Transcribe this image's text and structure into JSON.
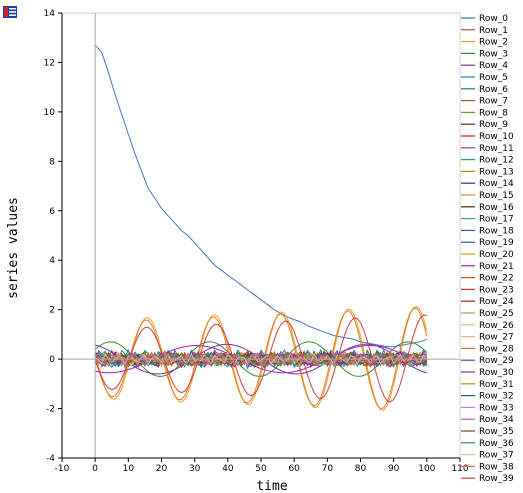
{
  "chart_data": {
    "type": "line",
    "title": "",
    "xlabel": "time",
    "ylabel": "series values",
    "xlim": [
      -10,
      110
    ],
    "ylim": [
      -4,
      14
    ],
    "x_ticks": [
      -10,
      0,
      10,
      20,
      30,
      40,
      50,
      60,
      70,
      80,
      90,
      100,
      110
    ],
    "y_ticks": [
      -4,
      -2,
      0,
      2,
      4,
      6,
      8,
      10,
      12,
      14
    ],
    "grid": true,
    "legend_position": "right",
    "series_colors": [
      "#4472c4",
      "#c0504d",
      "#e8a030",
      "#2f8f2f",
      "#7030a0",
      "#2c7fb8",
      "#1f7a8c",
      "#a05a2c",
      "#5aa02c",
      "#7a1f1f",
      "#c02020",
      "#8e44ad",
      "#16a085",
      "#b8860b",
      "#1f3a93",
      "#e67e22",
      "#4b2b1a",
      "#27ae60",
      "#2e5d9f",
      "#355e8a",
      "#d4a017",
      "#a020c0",
      "#d35400",
      "#c0392b",
      "#9b1d1d",
      "#7fbf3f",
      "#e0c070",
      "#f0b080",
      "#e07020",
      "#5b3f9f",
      "#7b3fa0",
      "#b09000",
      "#2050a0",
      "#c080d0",
      "#b060c0",
      "#7a4a1a",
      "#2e8b57",
      "#e8c090",
      "#e07070",
      "#d04040"
    ],
    "series": [
      {
        "name": "Row_0",
        "x": [
          0,
          2,
          4,
          6,
          8,
          10,
          12,
          14,
          16,
          18,
          20,
          22,
          24,
          26,
          28,
          30,
          32,
          34,
          36,
          38,
          40,
          42,
          44,
          46,
          48,
          50,
          52,
          54,
          56,
          58,
          60,
          62,
          64,
          66,
          68,
          70,
          72,
          74,
          76,
          78,
          80,
          82,
          84,
          86,
          88,
          90,
          92,
          94,
          96,
          98,
          100
        ],
        "y": [
          12.7,
          12.4,
          11.6,
          10.7,
          9.9,
          9.1,
          8.3,
          7.6,
          6.9,
          6.5,
          6.1,
          5.8,
          5.5,
          5.2,
          5.0,
          4.7,
          4.4,
          4.1,
          3.8,
          3.6,
          3.4,
          3.2,
          3.0,
          2.8,
          2.6,
          2.4,
          2.2,
          2.0,
          1.85,
          1.7,
          1.6,
          1.5,
          1.35,
          1.25,
          1.15,
          1.05,
          0.95,
          0.9,
          0.85,
          0.8,
          0.7,
          0.65,
          0.6,
          0.55,
          0.5,
          0.5,
          0.55,
          0.6,
          0.65,
          0.7,
          0.8
        ]
      },
      {
        "name": "Row_1",
        "amp": 0.25,
        "freq": 0.35,
        "phase": 0.4
      },
      {
        "name": "Row_2",
        "amp": 1.6,
        "freq": 0.31,
        "phase": 3.0,
        "mult": 1.35
      },
      {
        "name": "Row_3",
        "amp": 0.7,
        "freq": 0.21,
        "phase": 0.6
      },
      {
        "name": "Row_4",
        "amp": 0.6,
        "freq": 0.15,
        "phase": 1.9
      },
      {
        "name": "Row_5",
        "amp": 0.3,
        "freq": 0.9,
        "phase": 0.2
      },
      {
        "name": "Row_6",
        "amp": 0.3,
        "freq": 1.3,
        "phase": 1.4
      },
      {
        "name": "Row_7",
        "amp": 0.2,
        "freq": 1.7,
        "phase": 2.1
      },
      {
        "name": "Row_8",
        "amp": 0.2,
        "freq": 1.1,
        "phase": 0.9
      },
      {
        "name": "Row_9",
        "amp": 0.15,
        "freq": 1.9,
        "phase": 0.3
      },
      {
        "name": "Row_10",
        "amp": 0.25,
        "freq": 0.8,
        "phase": 2.6
      },
      {
        "name": "Row_11",
        "amp": 0.2,
        "freq": 1.4,
        "phase": 1.2
      },
      {
        "name": "Row_12",
        "amp": 0.25,
        "freq": 1.6,
        "phase": 2.9
      },
      {
        "name": "Row_13",
        "amp": 0.2,
        "freq": 0.7,
        "phase": 1.7
      },
      {
        "name": "Row_14",
        "amp": 0.15,
        "freq": 2.1,
        "phase": 0.5
      },
      {
        "name": "Row_15",
        "amp": 1.5,
        "freq": 0.31,
        "phase": 3.1,
        "mult": 1.4
      },
      {
        "name": "Row_16",
        "amp": 0.15,
        "freq": 1.2,
        "phase": 2.2
      },
      {
        "name": "Row_17",
        "amp": 0.2,
        "freq": 1.8,
        "phase": 0.7
      },
      {
        "name": "Row_18",
        "amp": 0.15,
        "freq": 0.95,
        "phase": 1.5
      },
      {
        "name": "Row_19",
        "amp": 0.2,
        "freq": 1.45,
        "phase": 2.4
      },
      {
        "name": "Row_20",
        "amp": 0.15,
        "freq": 1.05,
        "phase": 0.1
      },
      {
        "name": "Row_21",
        "amp": 0.55,
        "freq": 0.12,
        "phase": 4.2
      },
      {
        "name": "Row_22",
        "amp": 0.2,
        "freq": 1.65,
        "phase": 1.0
      },
      {
        "name": "Row_23",
        "amp": 0.15,
        "freq": 0.85,
        "phase": 2.0
      },
      {
        "name": "Row_24",
        "amp": 0.2,
        "freq": 1.25,
        "phase": 0.6
      },
      {
        "name": "Row_25",
        "amp": 0.15,
        "freq": 1.95,
        "phase": 1.8
      },
      {
        "name": "Row_26",
        "amp": 0.2,
        "freq": 0.75,
        "phase": 2.7
      },
      {
        "name": "Row_27",
        "amp": 0.15,
        "freq": 1.35,
        "phase": 0.4
      },
      {
        "name": "Row_28",
        "amp": 0.2,
        "freq": 1.55,
        "phase": 2.3
      },
      {
        "name": "Row_29",
        "amp": 0.15,
        "freq": 1.15,
        "phase": 1.1
      },
      {
        "name": "Row_30",
        "amp": 0.2,
        "freq": 0.65,
        "phase": 0.8
      },
      {
        "name": "Row_31",
        "amp": 0.15,
        "freq": 1.75,
        "phase": 2.5
      },
      {
        "name": "Row_32",
        "amp": 0.2,
        "freq": 0.55,
        "phase": 1.3
      },
      {
        "name": "Row_33",
        "amp": 0.15,
        "freq": 1.85,
        "phase": 0.2
      },
      {
        "name": "Row_34",
        "amp": 0.2,
        "freq": 1.0,
        "phase": 2.8
      },
      {
        "name": "Row_35",
        "amp": 0.15,
        "freq": 1.5,
        "phase": 1.6
      },
      {
        "name": "Row_36",
        "amp": 0.2,
        "freq": 0.6,
        "phase": 0.9
      },
      {
        "name": "Row_37",
        "amp": 0.15,
        "freq": 1.7,
        "phase": 2.2
      },
      {
        "name": "Row_38",
        "amp": 0.2,
        "freq": 1.2,
        "phase": 0.3
      },
      {
        "name": "Row_39",
        "amp": 1.2,
        "freq": 0.3,
        "phase": 3.2,
        "mult": 1.5
      }
    ]
  },
  "menu": {
    "icon": "menu-icon"
  }
}
